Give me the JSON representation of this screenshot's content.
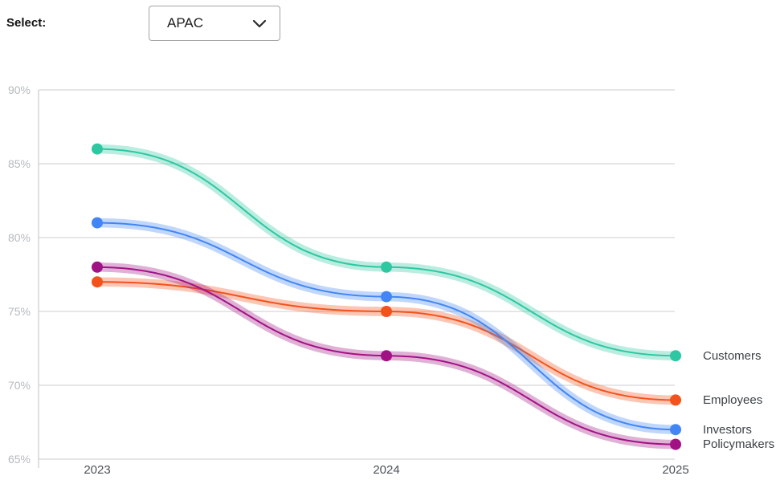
{
  "header": {
    "select_label": "Select:",
    "region_dropdown": {
      "value": "APAC",
      "chevron_icon": "chevron-down"
    }
  },
  "chart_data": {
    "type": "line",
    "x": [
      "2023",
      "2024",
      "2025"
    ],
    "series": [
      {
        "name": "Customers",
        "color": "#2dc7a1",
        "values": [
          86,
          78,
          72
        ]
      },
      {
        "name": "Employees",
        "color": "#f3521c",
        "values": [
          77,
          75,
          69
        ]
      },
      {
        "name": "Investors",
        "color": "#4186f4",
        "values": [
          81,
          76,
          67
        ]
      },
      {
        "name": "Policymakers",
        "color": "#a21284",
        "values": [
          78,
          72,
          66
        ]
      }
    ],
    "ylim": [
      65,
      90
    ],
    "yticks": [
      {
        "value": 90,
        "label": "90%"
      },
      {
        "value": 85,
        "label": "85%"
      },
      {
        "value": 80,
        "label": "80%"
      },
      {
        "value": 75,
        "label": "75%"
      },
      {
        "value": 70,
        "label": "70%"
      },
      {
        "value": 65,
        "label": "65%"
      }
    ],
    "grid": true,
    "legend_position": "right",
    "title": "",
    "xlabel": "",
    "ylabel": ""
  }
}
